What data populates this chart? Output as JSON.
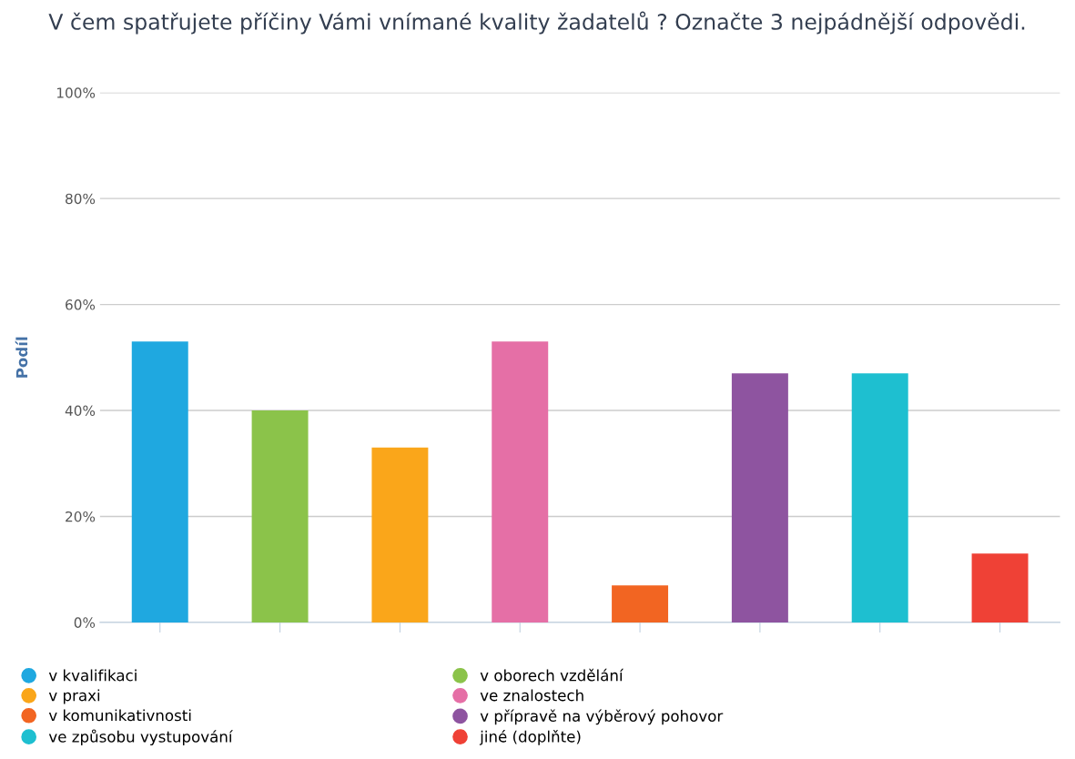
{
  "chart_data": {
    "type": "bar",
    "title": "V čem spatřujete příčiny Vámi vnímané kvality žadatelů ? Označte 3 nejpádnější odpovědi.",
    "ylabel": "Podíl",
    "categories": [
      null,
      null,
      null,
      null,
      null,
      null,
      null,
      null
    ],
    "series": [
      {
        "name": "v kvalifikaci",
        "color": "#1fa8e0",
        "values": [
          53,
          null,
          null,
          null,
          null,
          null,
          null,
          null
        ]
      },
      {
        "name": "v oborech vzdělání",
        "color": "#8bc34a",
        "values": [
          null,
          40,
          null,
          null,
          null,
          null,
          null,
          null
        ]
      },
      {
        "name": "v praxi",
        "color": "#faa61a",
        "values": [
          null,
          null,
          33,
          null,
          null,
          null,
          null,
          null
        ]
      },
      {
        "name": "ve znalostech",
        "color": "#e56fa6",
        "values": [
          null,
          null,
          null,
          53,
          null,
          null,
          null,
          null
        ]
      },
      {
        "name": "v komunikativnosti",
        "color": "#f26522",
        "values": [
          null,
          null,
          null,
          null,
          7,
          null,
          null,
          null
        ]
      },
      {
        "name": "v přípravě na výběrový pohovor",
        "color": "#8e54a0",
        "values": [
          null,
          null,
          null,
          null,
          null,
          47,
          null,
          null
        ]
      },
      {
        "name": "ve způsobu vystupování",
        "color": "#1ebfd0",
        "values": [
          null,
          null,
          null,
          null,
          null,
          null,
          47,
          null
        ]
      },
      {
        "name": "jiné (doplňte)",
        "color": "#ef4136",
        "values": [
          null,
          null,
          null,
          null,
          null,
          null,
          null,
          13
        ]
      }
    ],
    "ylim": [
      0,
      100
    ],
    "yticks": [
      {
        "value": 0,
        "label": "0%"
      },
      {
        "value": 20,
        "label": "20%"
      },
      {
        "value": 40,
        "label": "40%"
      },
      {
        "value": 60,
        "label": "60%"
      },
      {
        "value": 80,
        "label": "80%"
      },
      {
        "value": 100,
        "label": "100%"
      }
    ],
    "grid": "y",
    "legend": "bottom",
    "tick_labels": "y"
  }
}
